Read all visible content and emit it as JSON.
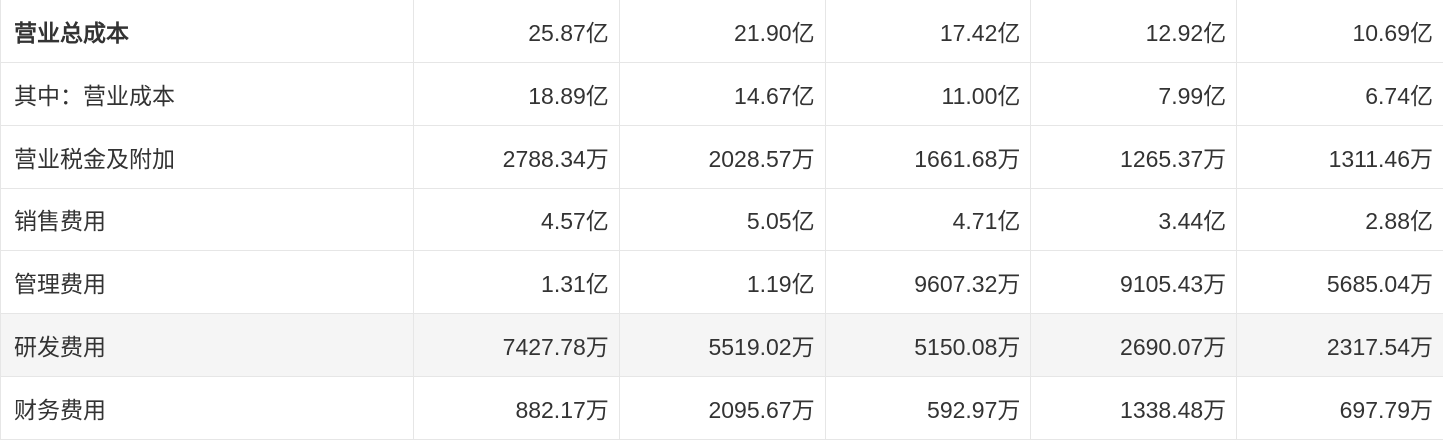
{
  "table": {
    "bold_row_index": 0,
    "highlight_row_index": 5,
    "colors": {
      "text": "#333333",
      "border": "#e6e6e6",
      "highlight_bg": "#f5f5f5",
      "background": "#ffffff"
    },
    "rows": [
      {
        "label": "营业总成本",
        "values": [
          "25.87亿",
          "21.90亿",
          "17.42亿",
          "12.92亿",
          "10.69亿"
        ]
      },
      {
        "label": "其中：营业成本",
        "values": [
          "18.89亿",
          "14.67亿",
          "11.00亿",
          "7.99亿",
          "6.74亿"
        ]
      },
      {
        "label": "营业税金及附加",
        "values": [
          "2788.34万",
          "2028.57万",
          "1661.68万",
          "1265.37万",
          "1311.46万"
        ]
      },
      {
        "label": "销售费用",
        "values": [
          "4.57亿",
          "5.05亿",
          "4.71亿",
          "3.44亿",
          "2.88亿"
        ]
      },
      {
        "label": "管理费用",
        "values": [
          "1.31亿",
          "1.19亿",
          "9607.32万",
          "9105.43万",
          "5685.04万"
        ]
      },
      {
        "label": "研发费用",
        "values": [
          "7427.78万",
          "5519.02万",
          "5150.08万",
          "2690.07万",
          "2317.54万"
        ]
      },
      {
        "label": "财务费用",
        "values": [
          "882.17万",
          "2095.67万",
          "592.97万",
          "1338.48万",
          "697.79万"
        ]
      }
    ]
  }
}
